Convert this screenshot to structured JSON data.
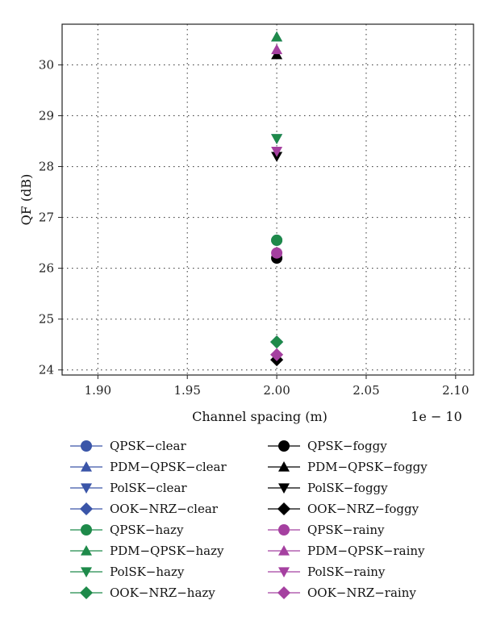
{
  "chart_data": {
    "type": "scatter",
    "xlabel": "Channel spacing (m)",
    "ylabel": "QF (dB)",
    "x_multiplier_label": "1e − 10",
    "xlim": [
      1.88,
      2.11
    ],
    "ylim": [
      23.9,
      30.8
    ],
    "xticks": [
      1.9,
      1.95,
      2.0,
      2.05,
      2.1
    ],
    "xtick_labels": [
      "1.90",
      "1.95",
      "2.00",
      "2.05",
      "2.10"
    ],
    "yticks": [
      24,
      25,
      26,
      27,
      28,
      29,
      30
    ],
    "ytick_labels": [
      "24",
      "25",
      "26",
      "27",
      "28",
      "29",
      "30"
    ],
    "grid": true,
    "legend_position": "bottom",
    "series": [
      {
        "name": "QPSK−clear",
        "marker": "circle",
        "color": "#3a55a8",
        "x": [
          2.0
        ],
        "y": [
          26.55
        ]
      },
      {
        "name": "PDM−QPSK−clear",
        "marker": "triangle-up",
        "color": "#3a55a8",
        "x": [
          2.0
        ],
        "y": [
          30.55
        ]
      },
      {
        "name": "PolSK−clear",
        "marker": "triangle-down",
        "color": "#3a55a8",
        "x": [
          2.0
        ],
        "y": [
          28.55
        ]
      },
      {
        "name": "OOK−NRZ−clear",
        "marker": "diamond",
        "color": "#3a55a8",
        "x": [
          2.0
        ],
        "y": [
          24.55
        ]
      },
      {
        "name": "QPSK−hazy",
        "marker": "circle",
        "color": "#1e8a4a",
        "x": [
          2.0
        ],
        "y": [
          26.55
        ]
      },
      {
        "name": "PDM−QPSK−hazy",
        "marker": "triangle-up",
        "color": "#1e8a4a",
        "x": [
          2.0
        ],
        "y": [
          30.55
        ]
      },
      {
        "name": "PolSK−hazy",
        "marker": "triangle-down",
        "color": "#1e8a4a",
        "x": [
          2.0
        ],
        "y": [
          28.55
        ]
      },
      {
        "name": "OOK−NRZ−hazy",
        "marker": "diamond",
        "color": "#1e8a4a",
        "x": [
          2.0
        ],
        "y": [
          24.55
        ]
      },
      {
        "name": "QPSK−foggy",
        "marker": "circle",
        "color": "#000000",
        "x": [
          2.0
        ],
        "y": [
          26.2
        ]
      },
      {
        "name": "PDM−QPSK−foggy",
        "marker": "triangle-up",
        "color": "#000000",
        "x": [
          2.0
        ],
        "y": [
          30.2
        ]
      },
      {
        "name": "PolSK−foggy",
        "marker": "triangle-down",
        "color": "#000000",
        "x": [
          2.0
        ],
        "y": [
          28.2
        ]
      },
      {
        "name": "OOK−NRZ−foggy",
        "marker": "diamond",
        "color": "#000000",
        "x": [
          2.0
        ],
        "y": [
          24.2
        ]
      },
      {
        "name": "QPSK−rainy",
        "marker": "circle",
        "color": "#a540a0",
        "x": [
          2.0
        ],
        "y": [
          26.3
        ]
      },
      {
        "name": "PDM−QPSK−rainy",
        "marker": "triangle-up",
        "color": "#a540a0",
        "x": [
          2.0
        ],
        "y": [
          30.3
        ]
      },
      {
        "name": "PolSK−rainy",
        "marker": "triangle-down",
        "color": "#a540a0",
        "x": [
          2.0
        ],
        "y": [
          28.3
        ]
      },
      {
        "name": "OOK−NRZ−rainy",
        "marker": "diamond",
        "color": "#a540a0",
        "x": [
          2.0
        ],
        "y": [
          24.3
        ]
      }
    ]
  }
}
